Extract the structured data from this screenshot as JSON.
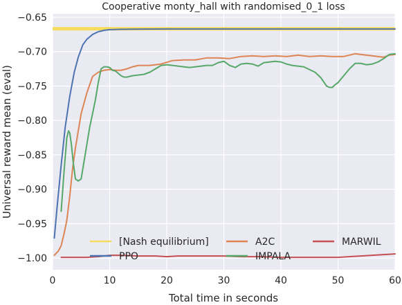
{
  "chart_data": {
    "type": "line",
    "title": "Cooperative monty_hall with randomised_0_1 loss",
    "xlabel": "Total time in seconds",
    "ylabel": "Universal reward mean (eval)",
    "xlim": [
      0,
      60
    ],
    "ylim": [
      -1.017,
      -0.645
    ],
    "xticks": [
      0,
      10,
      20,
      30,
      40,
      50,
      60
    ],
    "xtick_labels": [
      "0",
      "10",
      "20",
      "30",
      "40",
      "50",
      "60"
    ],
    "yticks": [
      -1.0,
      -0.95,
      -0.9,
      -0.85,
      -0.8,
      -0.75,
      -0.7,
      -0.65
    ],
    "ytick_labels": [
      "−1.00",
      "−0.95",
      "−0.90",
      "−0.85",
      "−0.80",
      "−0.75",
      "−0.70",
      "−0.65"
    ],
    "grid": true,
    "legend_position": "lower-center",
    "legend_columns": 3,
    "background_color": "#EAEAF2",
    "reference_band": {
      "name": "[Nash equilibrium]",
      "y": -0.6667,
      "half_width": 0.0025,
      "color": "#F5DC5E"
    },
    "series": [
      {
        "name": "PPO",
        "color": "#4C72B0",
        "x": [
          0.3,
          0.8,
          1.5,
          2.2,
          3.0,
          3.8,
          4.5,
          5.3,
          6.0,
          7.0,
          8.0,
          9.0,
          10.0,
          12.0,
          15.0,
          20.0,
          30.0,
          40.0,
          50.0,
          60.0
        ],
        "y": [
          -0.971,
          -0.925,
          -0.865,
          -0.81,
          -0.765,
          -0.73,
          -0.708,
          -0.69,
          -0.682,
          -0.675,
          -0.671,
          -0.669,
          -0.668,
          -0.6675,
          -0.6672,
          -0.667,
          -0.667,
          -0.667,
          -0.667,
          -0.667
        ]
      },
      {
        "name": "A2C",
        "color": "#DD8452",
        "x": [
          0.3,
          1.0,
          1.5,
          2.0,
          2.5,
          3.0,
          3.5,
          4.0,
          5.0,
          6.0,
          7.0,
          8.0,
          9.0,
          10.0,
          11.0,
          12.0,
          13.0,
          14.0,
          15.0,
          17.0,
          19.0,
          21.0,
          23.0,
          25.0,
          27.0,
          29.0,
          31.0,
          33.0,
          35.0,
          37.0,
          39.0,
          41.0,
          43.0,
          45.0,
          47.0,
          49.0,
          51.0,
          53.0,
          55.0,
          57.0,
          58.0,
          59.0,
          60.0
        ],
        "y": [
          -0.996,
          -0.99,
          -0.982,
          -0.965,
          -0.945,
          -0.91,
          -0.87,
          -0.84,
          -0.79,
          -0.76,
          -0.736,
          -0.73,
          -0.727,
          -0.726,
          -0.727,
          -0.727,
          -0.725,
          -0.722,
          -0.72,
          -0.72,
          -0.718,
          -0.713,
          -0.712,
          -0.712,
          -0.709,
          -0.709,
          -0.71,
          -0.707,
          -0.706,
          -0.707,
          -0.706,
          -0.707,
          -0.705,
          -0.707,
          -0.706,
          -0.707,
          -0.707,
          -0.703,
          -0.705,
          -0.707,
          -0.708,
          -0.705,
          -0.704
        ]
      },
      {
        "name": "IMPALA",
        "color": "#55A868",
        "x": [
          1.5,
          2.0,
          2.5,
          2.8,
          3.0,
          3.3,
          3.6,
          4.0,
          4.5,
          5.0,
          5.5,
          6.0,
          6.5,
          7.0,
          7.5,
          8.0,
          8.5,
          9.0,
          9.5,
          10.0,
          10.5,
          11.0,
          12.0,
          12.5,
          13.0,
          14.0,
          15.0,
          16.0,
          17.0,
          18.0,
          19.0,
          20.0,
          21.0,
          22.0,
          23.0,
          24.0,
          25.0,
          26.0,
          27.0,
          28.0,
          29.0,
          30.0,
          31.0,
          32.0,
          33.0,
          34.0,
          35.0,
          36.0,
          37.0,
          38.0,
          39.0,
          40.0,
          41.0,
          42.0,
          43.0,
          44.0,
          45.0,
          46.0,
          47.0,
          48.0,
          48.5,
          49.0,
          49.5,
          50.0,
          51.0,
          52.0,
          53.0,
          54.0,
          55.0,
          56.0,
          57.0,
          58.0,
          59.0,
          60.0
        ],
        "y": [
          -0.932,
          -0.875,
          -0.825,
          -0.815,
          -0.818,
          -0.835,
          -0.86,
          -0.885,
          -0.888,
          -0.885,
          -0.86,
          -0.835,
          -0.81,
          -0.79,
          -0.77,
          -0.745,
          -0.725,
          -0.722,
          -0.722,
          -0.723,
          -0.727,
          -0.728,
          -0.735,
          -0.737,
          -0.737,
          -0.735,
          -0.734,
          -0.733,
          -0.73,
          -0.725,
          -0.72,
          -0.719,
          -0.72,
          -0.721,
          -0.722,
          -0.723,
          -0.722,
          -0.721,
          -0.72,
          -0.72,
          -0.716,
          -0.714,
          -0.72,
          -0.723,
          -0.718,
          -0.717,
          -0.718,
          -0.721,
          -0.716,
          -0.715,
          -0.714,
          -0.715,
          -0.718,
          -0.72,
          -0.721,
          -0.722,
          -0.726,
          -0.73,
          -0.738,
          -0.75,
          -0.752,
          -0.752,
          -0.748,
          -0.745,
          -0.735,
          -0.725,
          -0.717,
          -0.717,
          -0.719,
          -0.718,
          -0.715,
          -0.71,
          -0.704,
          -0.703
        ]
      },
      {
        "name": "MARWIL",
        "color": "#C44E52",
        "x": [
          1.5,
          3.0,
          5.0,
          6.0,
          8.0,
          10.0,
          12.0,
          15.0,
          18.0,
          20.0,
          22.0,
          25.0,
          28.0,
          30.0,
          33.0,
          36.0,
          40.0,
          43.0,
          46.0,
          50.0,
          52.0,
          54.0,
          56.0,
          58.0,
          60.0
        ],
        "y": [
          -0.999,
          -0.999,
          -0.999,
          -0.999,
          -0.998,
          -0.996,
          -0.996,
          -0.997,
          -0.997,
          -0.998,
          -0.997,
          -0.997,
          -0.997,
          -0.997,
          -0.998,
          -0.998,
          -0.999,
          -0.999,
          -0.999,
          -0.999,
          -0.998,
          -0.997,
          -0.996,
          -0.995,
          -0.994
        ]
      }
    ],
    "legend_order": [
      "[Nash equilibrium]",
      "A2C",
      "MARWIL",
      "PPO",
      "IMPALA"
    ]
  }
}
